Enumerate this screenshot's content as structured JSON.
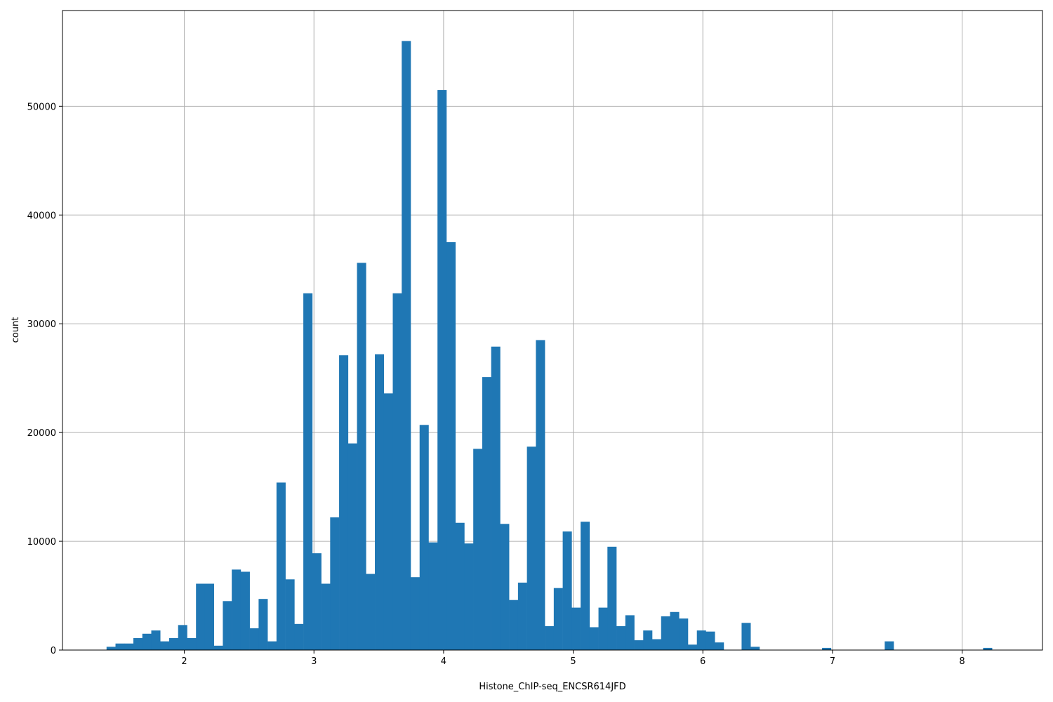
{
  "chart_data": {
    "type": "bar",
    "title": "",
    "xlabel": "Histone_ChIP-seq_ENCSR614JFD",
    "ylabel": "count",
    "xlim": [
      1.06,
      8.62
    ],
    "ylim": [
      0,
      58800
    ],
    "x_ticks": [
      2,
      3,
      4,
      5,
      6,
      7,
      8
    ],
    "y_ticks": [
      0,
      10000,
      20000,
      30000,
      40000,
      50000
    ],
    "grid": true,
    "bar_color": "#1f77b4",
    "bin_start": 1.4,
    "bin_width": 0.069,
    "counts": [
      300,
      600,
      600,
      1100,
      1500,
      1800,
      800,
      1100,
      2300,
      1100,
      6100,
      6100,
      400,
      4500,
      7400,
      7200,
      2000,
      4700,
      800,
      15400,
      6500,
      2400,
      32800,
      8900,
      6100,
      12200,
      27100,
      19000,
      35600,
      7000,
      27200,
      23600,
      32800,
      56000,
      6700,
      20700,
      9900,
      51500,
      37500,
      11700,
      9800,
      18500,
      25100,
      27900,
      11600,
      4600,
      6200,
      18700,
      28500,
      2200,
      5700,
      10900,
      3900,
      11800,
      2100,
      3900,
      9500,
      2200,
      3200,
      900,
      1800,
      1000,
      3100,
      3500,
      2900,
      500,
      1800,
      1700,
      700,
      0,
      0,
      2500,
      300,
      0,
      0,
      0,
      0,
      0,
      0,
      0,
      200,
      0,
      0,
      0,
      0,
      0,
      0,
      800,
      0,
      0,
      0,
      0,
      0,
      0,
      0,
      0,
      0,
      0,
      200
    ]
  }
}
